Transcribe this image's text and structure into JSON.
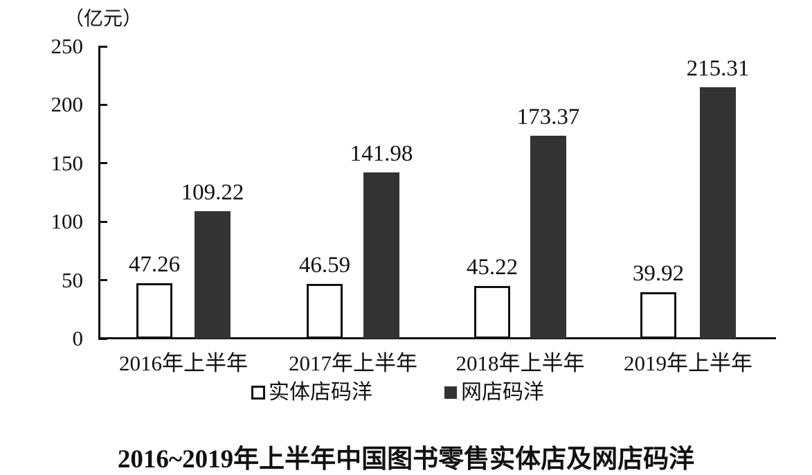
{
  "chart": {
    "unit_label": "（亿元）",
    "title": "2016~2019年上半年中国图书零售实体店及网店码洋"
  },
  "chart_data": {
    "type": "bar",
    "title": "2016~2019年上半年中国图书零售实体店及网店码洋",
    "xlabel": "",
    "ylabel": "（亿元）",
    "ylim": [
      0,
      250
    ],
    "yticks": [
      0,
      50,
      100,
      150,
      200,
      250
    ],
    "categories": [
      "2016年上半年",
      "2017年上半年",
      "2018年上半年",
      "2019年上半年"
    ],
    "series": [
      {
        "name": "实体店码洋",
        "values": [
          47.26,
          46.59,
          45.22,
          39.92
        ],
        "fill": "#ffffff",
        "border": "#111111",
        "swatch": "open"
      },
      {
        "name": "网店码洋",
        "values": [
          109.22,
          141.98,
          173.37,
          215.31
        ],
        "fill": "#333333",
        "border": "#333333",
        "swatch": "solid"
      }
    ],
    "value_labels": true,
    "grid": false,
    "legend_position": "bottom",
    "colors": {
      "solid_bar": "#333333",
      "axis": "#111111",
      "background": "#ffffff"
    }
  }
}
